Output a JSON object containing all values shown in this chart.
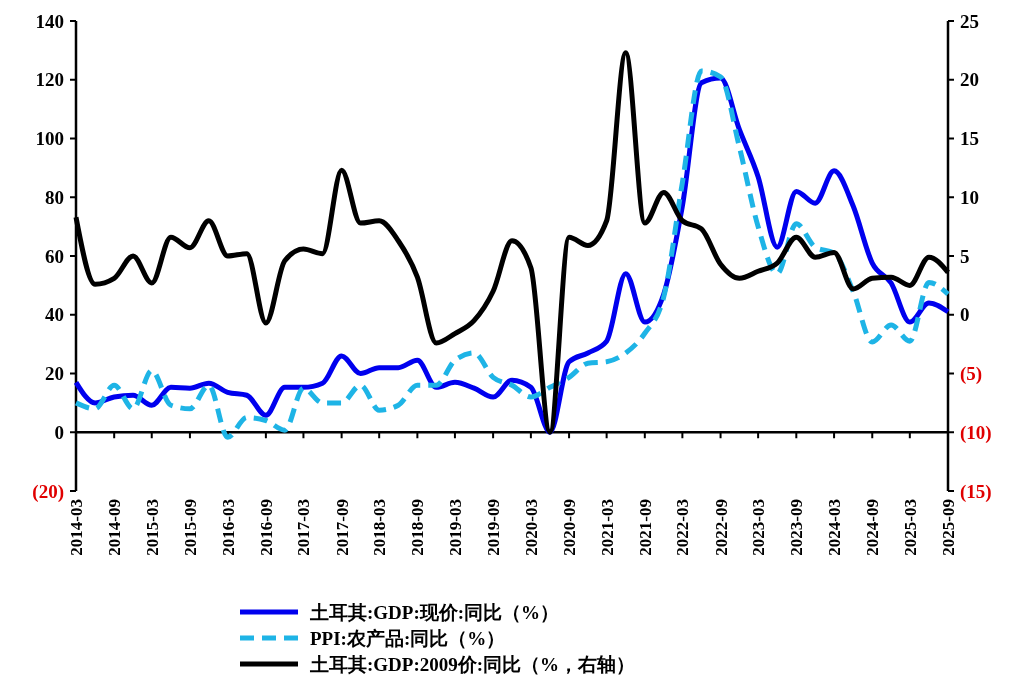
{
  "chart_data": {
    "type": "line",
    "x": [
      "2014-03",
      "2014-06",
      "2014-09",
      "2014-12",
      "2015-03",
      "2015-06",
      "2015-09",
      "2015-12",
      "2016-03",
      "2016-06",
      "2016-09",
      "2016-12",
      "2017-03",
      "2017-06",
      "2017-09",
      "2017-12",
      "2018-03",
      "2018-06",
      "2018-09",
      "2018-12",
      "2019-03",
      "2019-06",
      "2019-09",
      "2019-12",
      "2020-03",
      "2020-06",
      "2020-09",
      "2020-12",
      "2021-03",
      "2021-06",
      "2021-09",
      "2021-12",
      "2022-03",
      "2022-06",
      "2022-09",
      "2022-12",
      "2023-03",
      "2023-06",
      "2023-09",
      "2023-12",
      "2024-03",
      "2024-06",
      "2024-09",
      "2024-12",
      "2025-03",
      "2025-06",
      "2025-09"
    ],
    "series": [
      {
        "name": "土耳其:GDP:现价:同比（%）",
        "color": "#0000ee",
        "line_style": "solid",
        "values": [
          17,
          10,
          12,
          12.6,
          9.2,
          15.3,
          15,
          16.7,
          13.6,
          12.6,
          5.8,
          15.3,
          15.3,
          16.7,
          26,
          20,
          22,
          22,
          24.5,
          15.3,
          17,
          15,
          12,
          17.7,
          15.3,
          0,
          24,
          27,
          31,
          54,
          37.5,
          47,
          77,
          119,
          120.6,
          103,
          87,
          63,
          82,
          78,
          89,
          77,
          57.6,
          50.8,
          37.5,
          44,
          41
        ]
      },
      {
        "name": "PPI:农产品:同比（%）",
        "color": "#1eb4e6",
        "line_style": "dashed",
        "values": [
          10,
          8,
          16,
          8,
          21,
          9.2,
          8,
          16,
          -1.7,
          5,
          4,
          0.7,
          15,
          10,
          10,
          16,
          7.5,
          9.2,
          16,
          16,
          24.5,
          27,
          18.7,
          16,
          12,
          15.3,
          18.7,
          23.5,
          24,
          27,
          33.7,
          46,
          85,
          123,
          121,
          97,
          70,
          54,
          71,
          63,
          61,
          48,
          30.7,
          36.5,
          31,
          51,
          47
        ]
      },
      {
        "name": "土耳其:GDP:2009价:同比（%，右轴）",
        "color": "#000000",
        "line_style": "solid",
        "axis": "y2",
        "values": [
          8.3,
          2.6,
          3.1,
          5,
          2.7,
          6.6,
          5.7,
          8,
          5,
          5.2,
          -0.7,
          4.6,
          5.6,
          5.2,
          12.3,
          7.8,
          8,
          6.3,
          3.2,
          -2.4,
          -1.6,
          -0.5,
          2,
          6.3,
          4,
          -10,
          6.6,
          5.9,
          8,
          22.3,
          7.8,
          10.4,
          8,
          7.3,
          4.3,
          3.1,
          3.7,
          4.4,
          6.6,
          4.9,
          5.3,
          2.2,
          3.1,
          3.2,
          2.5,
          4.9,
          3.6
        ]
      }
    ],
    "xlim": [
      "2014-03",
      "2025-09"
    ],
    "xticks": [
      "2014-03",
      "2014-09",
      "2015-03",
      "2015-09",
      "2016-03",
      "2016-09",
      "2017-03",
      "2017-09",
      "2018-03",
      "2018-09",
      "2019-03",
      "2019-09",
      "2020-03",
      "2020-09",
      "2021-03",
      "2021-09",
      "2022-03",
      "2022-09",
      "2023-03",
      "2023-09",
      "2024-03",
      "2024-09",
      "2025-03",
      "2025-09"
    ],
    "ylim": [
      -20,
      140
    ],
    "yticks": [
      {
        "value": -20,
        "label": "(20)"
      },
      0,
      20,
      40,
      60,
      80,
      100,
      120,
      140
    ],
    "y2lim": [
      -15,
      25
    ],
    "y2ticks": [
      {
        "value": -15,
        "label": "(15)"
      },
      {
        "value": -10,
        "label": "(10)"
      },
      {
        "value": -5,
        "label": "(5)"
      },
      0,
      5,
      10,
      15,
      20,
      25
    ],
    "legend": "bottom"
  }
}
